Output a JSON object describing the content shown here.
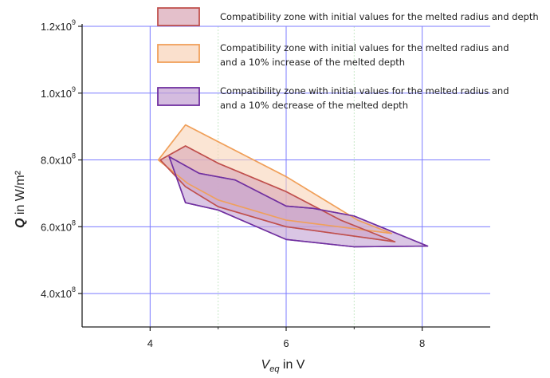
{
  "chart_data": {
    "type": "area",
    "xlabel": {
      "main": "V",
      "sub": "eq",
      "rest": " in V"
    },
    "ylabel": {
      "main": "Q",
      "rest": " in W/m²"
    },
    "xlim": [
      3,
      9
    ],
    "ylim": [
      300000000,
      1200000000
    ],
    "x_ticks": [
      4,
      6,
      8
    ],
    "x_tick_labels": [
      "4",
      "6",
      "8"
    ],
    "x_minor_ticks": [
      5,
      7
    ],
    "y_ticks": [
      400000000,
      600000000,
      800000000,
      1000000000,
      1200000000
    ],
    "y_tick_labels": [
      {
        "mant": "4.0x10",
        "exp": "8"
      },
      {
        "mant": "6.0x10",
        "exp": "8"
      },
      {
        "mant": "8.0x10",
        "exp": "8"
      },
      {
        "mant": "1.0x10",
        "exp": "9"
      },
      {
        "mant": "1.2x10",
        "exp": "9"
      }
    ],
    "grid": true,
    "legend_position": "top-right",
    "series": [
      {
        "name": "Compatibility zone with initial values for the melted radius and and a 10% increase of the melted depth",
        "legend_lines": [
          "Compatibility zone with initial values for the melted radius and",
          "and a 10% increase of the melted depth"
        ],
        "fill": "#f8d3b8",
        "stroke": "#f0a05a",
        "points": [
          [
            4.12,
            800000000
          ],
          [
            4.52,
            905000000
          ],
          [
            6.0,
            750000000
          ],
          [
            7.05,
            620000000
          ],
          [
            7.55,
            580000000
          ],
          [
            6.0,
            620000000
          ],
          [
            5.0,
            680000000
          ],
          [
            4.55,
            730000000
          ],
          [
            4.12,
            800000000
          ]
        ]
      },
      {
        "name": "Compatibility zone with initial values for the melted radius and depth",
        "legend_lines": [
          "Compatibility zone with initial values for the melted radius and depth"
        ],
        "fill": "#d8a5b5",
        "stroke": "#c0504d",
        "points": [
          [
            4.15,
            800000000
          ],
          [
            4.52,
            842000000
          ],
          [
            5.0,
            790000000
          ],
          [
            6.0,
            705000000
          ],
          [
            6.8,
            620000000
          ],
          [
            7.6,
            555000000
          ],
          [
            6.0,
            600000000
          ],
          [
            5.0,
            660000000
          ],
          [
            4.52,
            720000000
          ],
          [
            4.15,
            800000000
          ]
        ]
      },
      {
        "name": "Compatibility zone with initial values for the melted radius and and a 10% decrease of the melted depth",
        "legend_lines": [
          "Compatibility zone with initial values for the melted radius and",
          "and a 10% decrease of the melted depth"
        ],
        "fill": "#c2a0d2",
        "stroke": "#7030a0",
        "points": [
          [
            4.28,
            810000000
          ],
          [
            4.72,
            760000000
          ],
          [
            5.25,
            740000000
          ],
          [
            6.0,
            662000000
          ],
          [
            6.4,
            655000000
          ],
          [
            7.0,
            632000000
          ],
          [
            8.08,
            542000000
          ],
          [
            7.0,
            540000000
          ],
          [
            6.0,
            562000000
          ],
          [
            5.0,
            650000000
          ],
          [
            4.52,
            672000000
          ],
          [
            4.28,
            810000000
          ]
        ]
      }
    ],
    "legend_order": [
      1,
      0,
      2
    ]
  }
}
